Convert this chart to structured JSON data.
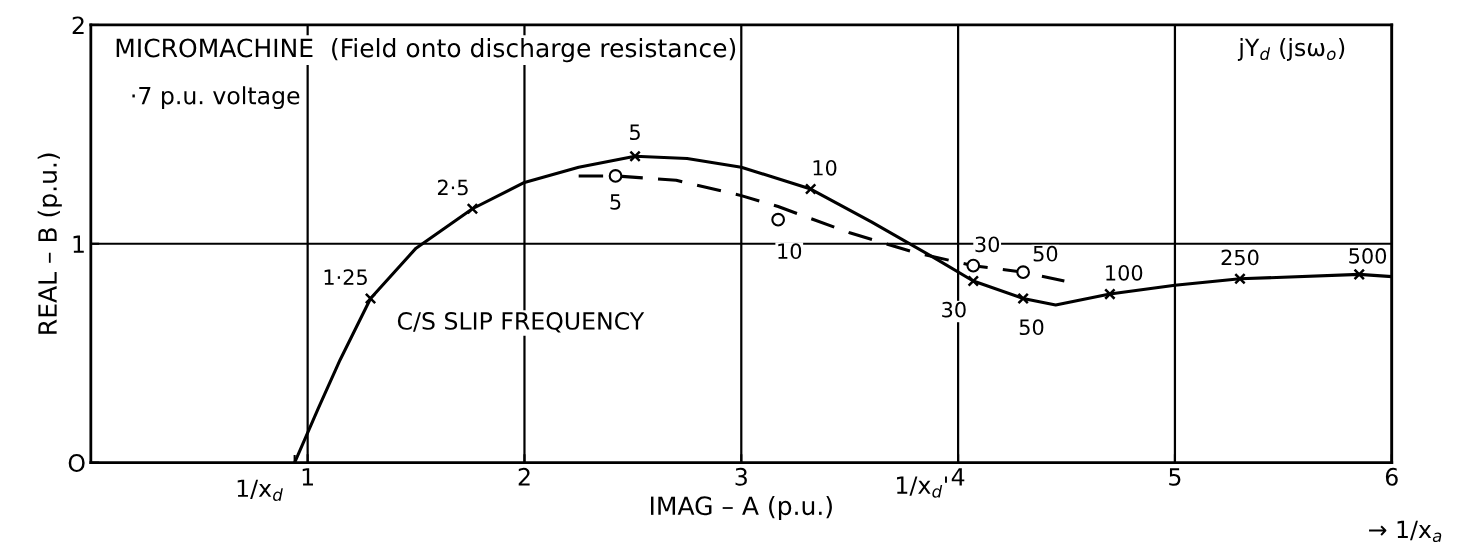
{
  "chart_data": {
    "type": "line",
    "title": "MICROMACHINE  (Field onto discharge resistance)",
    "subtitle": "·7 p.u. voltage",
    "xlabel": "IMAG – A (p.u.)",
    "ylabel": "REAL – B (p.u.)",
    "xlim": [
      0,
      6
    ],
    "ylim": [
      0,
      2
    ],
    "xticks": [
      1,
      2,
      3,
      4,
      5,
      6
    ],
    "yticks": [
      {
        "value": 0,
        "label": "O"
      },
      1,
      2
    ],
    "grid": true,
    "legend": false,
    "series": [
      {
        "color": "#000000",
        "line_style": "solid",
        "marker": "none",
        "x": [
          0.94,
          1.05,
          1.15,
          1.29,
          1.5,
          1.76,
          2.0,
          2.25,
          2.51,
          2.75,
          3.0,
          3.32,
          3.6,
          3.9,
          4.07,
          4.3,
          4.45,
          4.7,
          5.0,
          5.3,
          5.85,
          6.0
        ],
        "values": [
          0,
          0.25,
          0.47,
          0.75,
          0.98,
          1.16,
          1.28,
          1.35,
          1.4,
          1.39,
          1.35,
          1.25,
          1.1,
          0.93,
          0.83,
          0.75,
          0.72,
          0.77,
          0.81,
          0.84,
          0.86,
          0.85
        ]
      },
      {
        "type": "scatter",
        "color": "#000000",
        "marker": "cross",
        "x": [
          1.29,
          1.76,
          2.51,
          3.32,
          4.07,
          4.3,
          4.7,
          5.3,
          5.85
        ],
        "values": [
          0.75,
          1.16,
          1.4,
          1.25,
          0.83,
          0.75,
          0.77,
          0.84,
          0.86
        ]
      },
      {
        "color": "#000000",
        "line_style": "dashed",
        "marker": "none",
        "x": [
          2.25,
          2.42,
          2.7,
          3.0,
          3.17,
          3.5,
          3.8,
          4.07,
          4.3,
          4.49
        ],
        "values": [
          1.31,
          1.31,
          1.29,
          1.22,
          1.17,
          1.05,
          0.96,
          0.9,
          0.87,
          0.83
        ]
      },
      {
        "type": "scatter",
        "color": "#000000",
        "marker": "circle",
        "x": [
          2.42,
          3.17,
          4.07,
          4.3
        ],
        "values": [
          1.31,
          1.11,
          0.9,
          0.87
        ]
      }
    ],
    "annotations": [
      {
        "text": "1·25",
        "x": 1.29,
        "y": 0.75
      },
      {
        "text": "2·5",
        "x": 1.76,
        "y": 1.16
      },
      {
        "text": "5",
        "x": 2.51,
        "y": 1.4
      },
      {
        "text": "10",
        "x": 3.32,
        "y": 1.25
      },
      {
        "text": "30",
        "x": 4.07,
        "y": 0.83
      },
      {
        "text": "50",
        "x": 4.3,
        "y": 0.75
      },
      {
        "text": "100",
        "x": 4.7,
        "y": 0.77
      },
      {
        "text": "250",
        "x": 5.3,
        "y": 0.84
      },
      {
        "text": "500",
        "x": 5.85,
        "y": 0.86
      },
      {
        "text": "5",
        "x": 2.42,
        "y": 1.31
      },
      {
        "text": "10",
        "x": 3.17,
        "y": 1.11
      },
      {
        "text": "30",
        "x": 4.07,
        "y": 0.9
      },
      {
        "text": "50",
        "x": 4.3,
        "y": 0.87
      },
      {
        "text": "1/x$_{d}$",
        "x": 0.94,
        "y": 0
      },
      "C/S SLIP FREQUENCY",
      "jY$_{d}$ (jsω$_{o}$)",
      "→ 1/x$_{a}$",
      "1/x$_{d}$'"
    ]
  }
}
